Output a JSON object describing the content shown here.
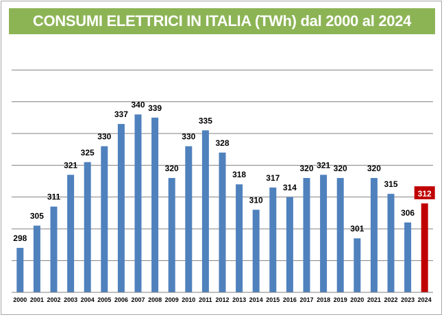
{
  "chart_data": {
    "type": "bar",
    "title": "CONSUMI ELETTRICI IN ITALIA (TWh) dal 2000 al 2024",
    "categories": [
      "2000",
      "2001",
      "2002",
      "2003",
      "2004",
      "2005",
      "2006",
      "2007",
      "2008",
      "2009",
      "2010",
      "2011",
      "2012",
      "2013",
      "2014",
      "2015",
      "2016",
      "2017",
      "2018",
      "2019",
      "2020",
      "2021",
      "2022",
      "2023",
      "2024"
    ],
    "values": [
      298,
      305,
      311,
      321,
      325,
      330,
      337,
      340,
      339,
      320,
      330,
      335,
      328,
      318,
      310,
      317,
      314,
      320,
      321,
      320,
      301,
      320,
      315,
      306,
      312
    ],
    "xlabel": "",
    "ylabel": "",
    "ylim": [
      284,
      354
    ],
    "y_gridline_step": 10,
    "y_tick_labels_shown": false,
    "grid": true,
    "legend": "none",
    "highlight_category": "2024",
    "colors": {
      "bar": "#4f81bd",
      "highlight_bar": "#c00000",
      "highlight_label_bg": "#c00000",
      "title_bg": "#8cb455",
      "title_text": "#ffffff",
      "grid": "#808080"
    }
  }
}
